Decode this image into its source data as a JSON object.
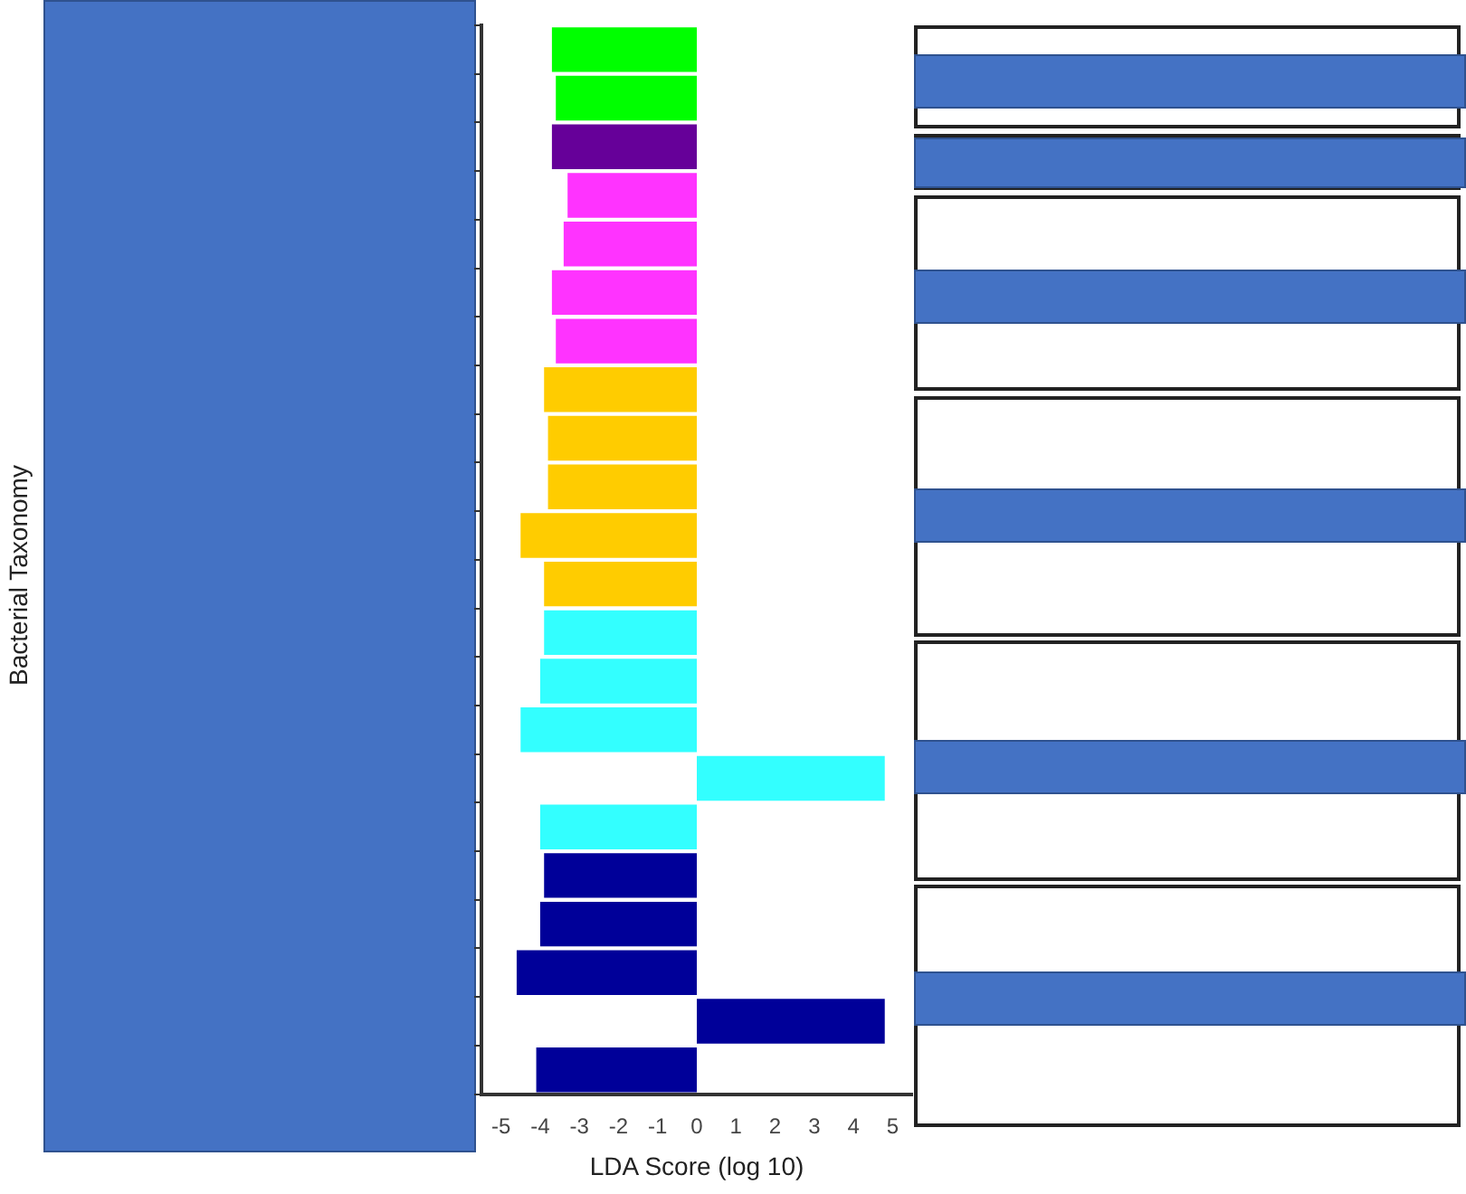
{
  "chart_data": {
    "type": "bar",
    "orientation": "horizontal",
    "xlabel": "LDA Score (log 10)",
    "annotations": [
      "Bacterial Taxonomy"
    ],
    "categories": [
      null,
      null,
      null,
      null,
      null,
      null,
      null,
      null,
      null,
      null,
      null,
      null,
      null,
      null,
      null,
      null,
      null,
      null,
      null,
      null,
      null,
      null
    ],
    "values": [
      -3.7,
      -3.6,
      -3.7,
      -3.3,
      -3.4,
      -3.7,
      -3.6,
      -3.9,
      -3.8,
      -3.8,
      -4.5,
      -3.9,
      -3.9,
      -4.0,
      -4.5,
      4.8,
      -4.0,
      -3.9,
      -4.0,
      -4.6,
      4.8,
      -4.1
    ],
    "colors": [
      "#00ff00",
      "#00ff00",
      "#660099",
      "#ff33ff",
      "#ff33ff",
      "#ff33ff",
      "#ff33ff",
      "#ffcc00",
      "#ffcc00",
      "#ffcc00",
      "#ffcc00",
      "#ffcc00",
      "#33ffff",
      "#33ffff",
      "#33ffff",
      "#33ffff",
      "#33ffff",
      "#000099",
      "#000099",
      "#000099",
      "#000099",
      "#000099"
    ],
    "xlim": [
      -5.5,
      5.5
    ],
    "xticks": [
      -5,
      -4,
      -3,
      -2,
      -1,
      0,
      1,
      2,
      3,
      4,
      5
    ],
    "grid": false,
    "legend": false,
    "tick_labels": "x"
  }
}
